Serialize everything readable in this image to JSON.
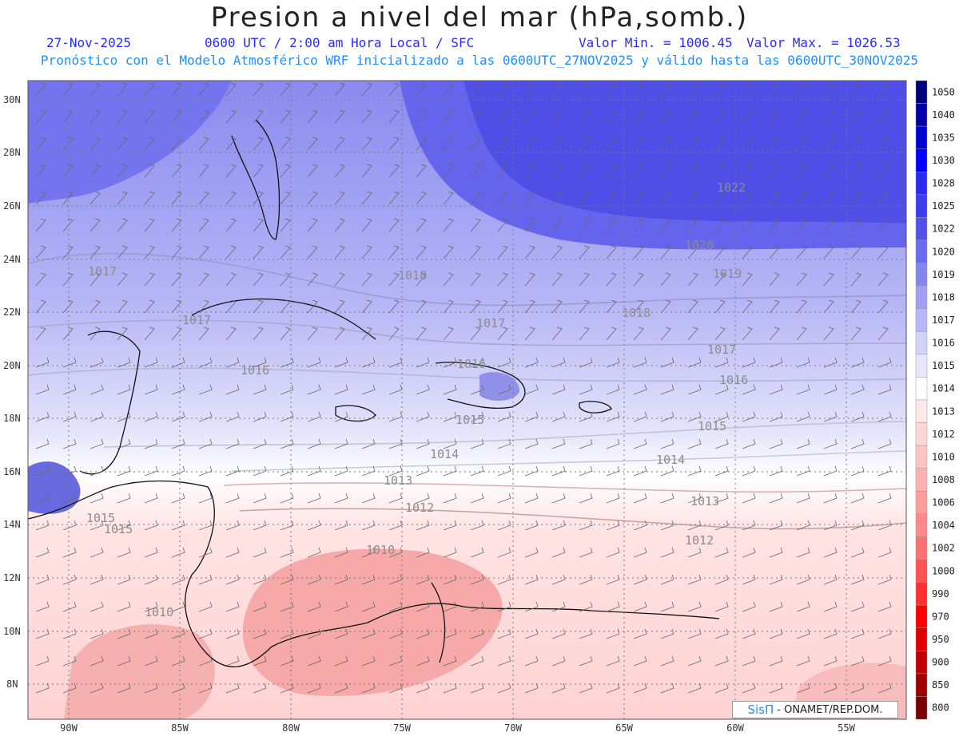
{
  "header": {
    "title": "Presion a nivel del mar (hPa,somb.)",
    "date": "27-Nov-2025",
    "time_text": "0600 UTC / 2:00 am Hora Local / SFC",
    "min_text": "Valor Min. = 1006.45",
    "max_text": "Valor Max. = 1026.53",
    "subtitle": "Pronóstico con el Modelo Atmosférico WRF inicializado a las 0600UTC_27NOV2025 y válido hasta las  0600UTC_30NOV2025"
  },
  "axes": {
    "lat_labels": [
      "30N",
      "28N",
      "26N",
      "24N",
      "22N",
      "20N",
      "18N",
      "16N",
      "14N",
      "12N",
      "10N",
      "8N"
    ],
    "lon_labels": [
      "90W",
      "85W",
      "80W",
      "75W",
      "70W",
      "65W",
      "60W",
      "55W"
    ]
  },
  "contour_labels": [
    "1022",
    "1020",
    "1019",
    "1018",
    "1017",
    "1018",
    "1017",
    "1016",
    "1016",
    "1017",
    "1016",
    "1015",
    "1015",
    "1014",
    "1014",
    "1013",
    "1013",
    "1012",
    "1012",
    "1010",
    "1015",
    "1015",
    "1010",
    "1017"
  ],
  "colorbar": {
    "levels": [
      "1050",
      "1040",
      "1035",
      "1030",
      "1028",
      "1025",
      "1022",
      "1020",
      "1019",
      "1018",
      "1017",
      "1016",
      "1015",
      "1014",
      "1013",
      "1012",
      "1010",
      "1008",
      "1006",
      "1004",
      "1002",
      "1000",
      "990",
      "970",
      "950",
      "900",
      "850",
      "800"
    ],
    "colors": [
      "#00007a",
      "#0000a6",
      "#0000d4",
      "#0000ff",
      "#2a2af2",
      "#3c3cf0",
      "#5252ea",
      "#6b6bee",
      "#8585f0",
      "#a0a0f4",
      "#b8b8f8",
      "#d2d2fa",
      "#e6e6fc",
      "#ffffff",
      "#ffe8e8",
      "#ffd6d6",
      "#ffc4c4",
      "#ffb0b0",
      "#ff9c9c",
      "#ff8888",
      "#ff7070",
      "#ff5252",
      "#ff3030",
      "#ff0000",
      "#e00000",
      "#c00000",
      "#a00000",
      "#780000"
    ]
  },
  "credit": {
    "logo": "SisΠ",
    "text": "- ONAMET/REP.DOM."
  }
}
